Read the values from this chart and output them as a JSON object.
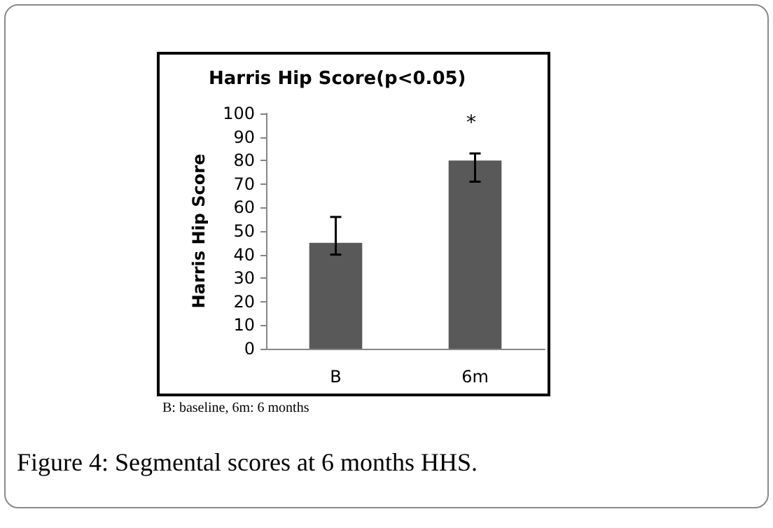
{
  "chart_data": {
    "type": "bar",
    "title": "Harris Hip Score(p<0.05)",
    "ylabel": "Harris Hip Score",
    "categories": [
      "B",
      "6m"
    ],
    "values": [
      45,
      80
    ],
    "errors": [
      [
        40,
        56
      ],
      [
        71,
        83
      ]
    ],
    "color": "#595959",
    "ylim": [
      0,
      100
    ],
    "yticks": [
      0,
      10,
      20,
      30,
      40,
      50,
      60,
      70,
      80,
      90,
      100
    ],
    "grid": false,
    "annotations": [
      "*",
      "B: baseline, 6m: 6 months",
      "Figure 4: Segmental scores at 6 months HHS."
    ]
  }
}
